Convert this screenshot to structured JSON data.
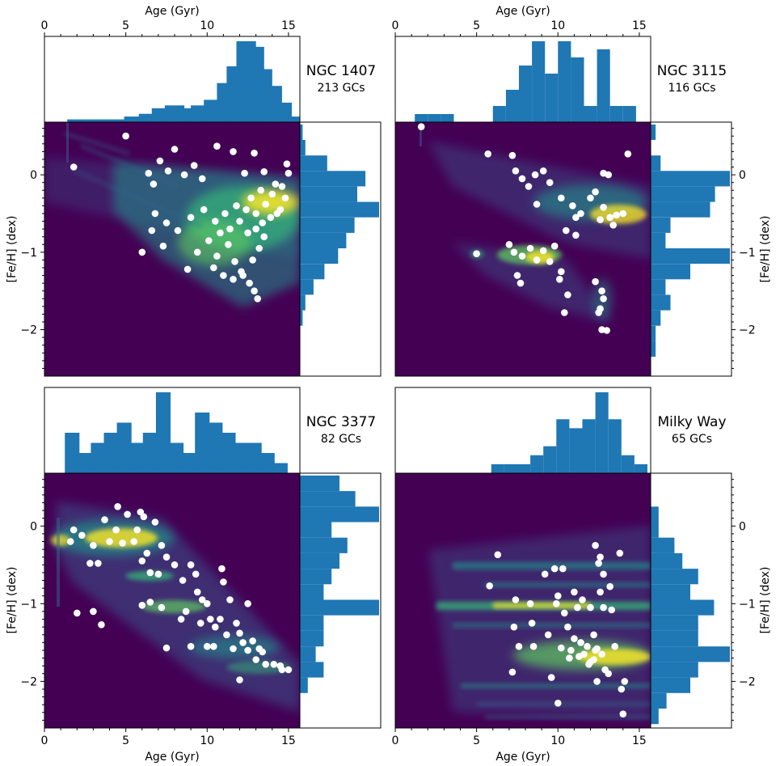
{
  "figure": {
    "x_axis_label": "Age (Gyr)",
    "y_axis_label": "[Fe/H] (dex)"
  },
  "chart_data": [
    {
      "type": "scatter",
      "name": "NGC 1407",
      "gc_count_label": "213 GCs",
      "xlabel": "Age (Gyr)",
      "ylabel": "[Fe/H] (dex)",
      "xlim": [
        0,
        15.7
      ],
      "ylim": [
        -2.6,
        0.68
      ],
      "xticks": [
        0,
        5,
        10,
        15
      ],
      "yticks": [
        -2,
        -1,
        0
      ],
      "density_background": "viridis age-metallicity density",
      "points": [
        [
          1.8,
          0.1
        ],
        [
          5.0,
          0.5
        ],
        [
          6.0,
          -1.0
        ],
        [
          6.4,
          0.02
        ],
        [
          6.7,
          -0.12
        ],
        [
          7.1,
          0.18
        ],
        [
          7.6,
          0.05
        ],
        [
          8.0,
          0.33
        ],
        [
          8.6,
          0.0
        ],
        [
          9.2,
          0.12
        ],
        [
          9.7,
          -0.05
        ],
        [
          10.6,
          0.37
        ],
        [
          11.6,
          0.3
        ],
        [
          12.3,
          0.02
        ],
        [
          12.9,
          0.28
        ],
        [
          13.5,
          0.04
        ],
        [
          14.2,
          -0.12
        ],
        [
          14.9,
          0.14
        ],
        [
          15.0,
          0.02
        ],
        [
          6.8,
          -0.5
        ],
        [
          7.5,
          -0.62
        ],
        [
          8.2,
          -0.72
        ],
        [
          9.0,
          -0.55
        ],
        [
          9.8,
          -0.45
        ],
        [
          10.5,
          -0.6
        ],
        [
          11.1,
          -0.5
        ],
        [
          11.8,
          -0.4
        ],
        [
          12.4,
          -0.45
        ],
        [
          13.0,
          -0.5
        ],
        [
          13.6,
          -0.38
        ],
        [
          14.3,
          -0.5
        ],
        [
          14.8,
          -0.3
        ],
        [
          10.1,
          -0.85
        ],
        [
          10.6,
          -1.05
        ],
        [
          11.3,
          -0.9
        ],
        [
          11.7,
          -1.12
        ],
        [
          12.1,
          -1.25
        ],
        [
          12.6,
          -1.4
        ],
        [
          12.9,
          -1.5
        ],
        [
          13.1,
          -1.6
        ],
        [
          10.4,
          -1.2
        ],
        [
          11.0,
          -1.3
        ],
        [
          11.6,
          -1.35
        ],
        [
          12.2,
          -1.3
        ],
        [
          12.8,
          -1.1
        ],
        [
          13.2,
          -0.95
        ],
        [
          13.5,
          -0.8
        ],
        [
          9.4,
          -1.0
        ],
        [
          8.8,
          -1.22
        ],
        [
          7.3,
          -0.92
        ],
        [
          6.6,
          -0.72
        ],
        [
          12.5,
          -0.75
        ],
        [
          13.0,
          -0.7
        ],
        [
          13.4,
          -0.62
        ],
        [
          13.9,
          -0.55
        ],
        [
          14.5,
          -0.45
        ],
        [
          11.4,
          -0.7
        ],
        [
          10.8,
          -0.75
        ],
        [
          12.0,
          -0.6
        ],
        [
          12.7,
          -0.3
        ],
        [
          13.3,
          -0.2
        ],
        [
          14.0,
          -0.25
        ],
        [
          14.6,
          -0.15
        ]
      ],
      "histogram_age": {
        "bin_centers": [
          0.8,
          2.0,
          3.2,
          4.4,
          5.5,
          6.4,
          7.2,
          8.0,
          8.8,
          9.6,
          10.4,
          11.2,
          11.8,
          12.4,
          12.9,
          13.4,
          14.0,
          14.6,
          15.2
        ],
        "counts": [
          0,
          1,
          1,
          1,
          2,
          3,
          5,
          6,
          5,
          6,
          8,
          14,
          20,
          29,
          27,
          19,
          13,
          7,
          2
        ]
      },
      "histogram_feh": {
        "bin_centers": [
          -2.45,
          -2.25,
          -2.05,
          -1.85,
          -1.65,
          -1.45,
          -1.25,
          -1.05,
          -0.85,
          -0.65,
          -0.45,
          -0.25,
          -0.05,
          0.15,
          0.35,
          0.55
        ],
        "counts": [
          0,
          0,
          0,
          1,
          2,
          5,
          9,
          14,
          17,
          20,
          29,
          21,
          24,
          10,
          2,
          1
        ]
      }
    },
    {
      "type": "scatter",
      "name": "NGC 3115",
      "gc_count_label": "116 GCs",
      "xlabel": "Age (Gyr)",
      "ylabel": "[Fe/H] (dex)",
      "xlim": [
        0,
        15.7
      ],
      "ylim": [
        -2.6,
        0.68
      ],
      "xticks": [
        0,
        5,
        10,
        15
      ],
      "yticks": [
        -2,
        -1,
        0
      ],
      "density_background": "viridis age-metallicity density",
      "points": [
        [
          1.6,
          0.62
        ],
        [
          5.7,
          0.27
        ],
        [
          7.2,
          0.25
        ],
        [
          7.4,
          0.05
        ],
        [
          7.8,
          -0.05
        ],
        [
          8.2,
          -0.15
        ],
        [
          8.6,
          0.0
        ],
        [
          9.1,
          0.05
        ],
        [
          9.5,
          -0.1
        ],
        [
          8.7,
          -0.38
        ],
        [
          10.2,
          -0.3
        ],
        [
          10.9,
          -0.4
        ],
        [
          11.4,
          -0.5
        ],
        [
          12.0,
          -0.3
        ],
        [
          12.3,
          -0.22
        ],
        [
          12.8,
          -0.42
        ],
        [
          13.2,
          -0.55
        ],
        [
          13.6,
          -0.52
        ],
        [
          14.0,
          -0.5
        ],
        [
          14.3,
          0.27
        ],
        [
          12.8,
          0.02
        ],
        [
          13.1,
          0.0
        ],
        [
          12.6,
          -0.58
        ],
        [
          13.4,
          -0.65
        ],
        [
          11.1,
          -0.55
        ],
        [
          10.5,
          -0.72
        ],
        [
          5.0,
          -1.02
        ],
        [
          7.0,
          -0.9
        ],
        [
          7.3,
          -1.0
        ],
        [
          7.8,
          -1.05
        ],
        [
          8.3,
          -0.95
        ],
        [
          8.7,
          -1.1
        ],
        [
          9.1,
          -0.98
        ],
        [
          9.5,
          -1.12
        ],
        [
          9.8,
          -0.92
        ],
        [
          10.2,
          -1.25
        ],
        [
          10.1,
          -1.35
        ],
        [
          7.5,
          -1.3
        ],
        [
          7.7,
          -1.4
        ],
        [
          10.6,
          -1.55
        ],
        [
          10.4,
          -1.78
        ],
        [
          12.3,
          -1.38
        ],
        [
          12.7,
          -1.5
        ],
        [
          12.8,
          -1.6
        ],
        [
          12.6,
          -1.73
        ],
        [
          12.5,
          -1.78
        ],
        [
          12.7,
          -2.0
        ],
        [
          13.0,
          -2.01
        ],
        [
          11.1,
          -0.78
        ]
      ],
      "histogram_age": {
        "bin_centers": [
          0.8,
          1.6,
          2.4,
          3.2,
          4.0,
          4.8,
          5.6,
          6.4,
          7.2,
          8.0,
          8.8,
          9.6,
          10.4,
          11.2,
          12.0,
          12.8,
          13.6,
          14.4,
          15.2
        ],
        "counts": [
          0,
          1,
          1,
          1,
          0,
          0,
          0,
          2,
          4,
          7,
          10,
          6,
          10,
          8,
          2,
          9,
          2,
          2,
          0
        ]
      },
      "histogram_feh": {
        "bin_centers": [
          -2.45,
          -2.25,
          -2.05,
          -1.85,
          -1.65,
          -1.45,
          -1.25,
          -1.05,
          -0.85,
          -0.65,
          -0.45,
          -0.25,
          -0.05,
          0.15,
          0.35,
          0.55
        ],
        "counts": [
          0,
          1,
          1,
          2,
          4,
          3,
          8,
          16,
          3,
          4,
          12,
          13,
          16,
          2,
          0,
          1
        ]
      }
    },
    {
      "type": "scatter",
      "name": "NGC 3377",
      "gc_count_label": "82 GCs",
      "xlabel": "Age (Gyr)",
      "ylabel": "[Fe/H] (dex)",
      "xlim": [
        0,
        15.7
      ],
      "ylim": [
        -2.6,
        0.68
      ],
      "xticks": [
        0,
        5,
        10,
        15
      ],
      "yticks": [
        -2,
        -1,
        0
      ],
      "density_background": "viridis age-metallicity density",
      "points": [
        [
          1.8,
          -0.05
        ],
        [
          2.3,
          -0.12
        ],
        [
          1.6,
          -0.2
        ],
        [
          2.8,
          -0.48
        ],
        [
          3.0,
          -0.25
        ],
        [
          3.3,
          -0.48
        ],
        [
          3.7,
          0.08
        ],
        [
          4.0,
          -0.2
        ],
        [
          4.4,
          -0.05
        ],
        [
          4.5,
          0.25
        ],
        [
          4.8,
          -0.22
        ],
        [
          5.1,
          0.15
        ],
        [
          5.5,
          -0.2
        ],
        [
          5.7,
          -0.05
        ],
        [
          5.9,
          0.18
        ],
        [
          6.1,
          0.12
        ],
        [
          6.0,
          -0.45
        ],
        [
          6.3,
          -0.35
        ],
        [
          6.5,
          -0.6
        ],
        [
          6.8,
          0.05
        ],
        [
          7.2,
          -0.25
        ],
        [
          7.5,
          -0.4
        ],
        [
          7.0,
          -0.62
        ],
        [
          6.5,
          -0.98
        ],
        [
          7.2,
          -1.05
        ],
        [
          7.5,
          -1.57
        ],
        [
          8.0,
          -0.5
        ],
        [
          8.5,
          -0.7
        ],
        [
          8.7,
          -1.1
        ],
        [
          9.0,
          -0.5
        ],
        [
          9.3,
          -0.62
        ],
        [
          9.0,
          -1.55
        ],
        [
          9.4,
          -0.85
        ],
        [
          9.7,
          -0.95
        ],
        [
          10.0,
          -1.0
        ],
        [
          10.2,
          -1.2
        ],
        [
          10.5,
          -1.3
        ],
        [
          10.0,
          -1.55
        ],
        [
          10.4,
          -1.55
        ],
        [
          10.9,
          -0.55
        ],
        [
          11.0,
          -0.72
        ],
        [
          11.4,
          -0.95
        ],
        [
          11.8,
          -1.25
        ],
        [
          12.0,
          -1.38
        ],
        [
          12.2,
          -1.5
        ],
        [
          12.0,
          -1.98
        ],
        [
          12.5,
          -1.0
        ],
        [
          12.8,
          -1.48
        ],
        [
          13.2,
          -1.58
        ],
        [
          13.0,
          -1.72
        ],
        [
          14.5,
          -1.8
        ],
        [
          15.0,
          -1.85
        ],
        [
          2.0,
          -1.12
        ],
        [
          3.0,
          -1.1
        ],
        [
          3.5,
          -1.27
        ],
        [
          12.5,
          -1.6
        ],
        [
          11.2,
          -1.4
        ],
        [
          8.4,
          -1.2
        ],
        [
          6.0,
          -1.02
        ],
        [
          10.8,
          -1.2
        ],
        [
          9.6,
          -1.25
        ],
        [
          11.6,
          -1.58
        ],
        [
          13.4,
          -1.62
        ],
        [
          13.6,
          -1.78
        ],
        [
          14.1,
          -1.78
        ],
        [
          14.6,
          -1.85
        ]
      ],
      "histogram_age": {
        "bin_centers": [
          0.8,
          1.7,
          2.5,
          3.3,
          4.1,
          4.9,
          5.7,
          6.5,
          7.3,
          8.1,
          8.9,
          9.7,
          10.5,
          11.3,
          12.1,
          12.9,
          13.7,
          14.5,
          15.3
        ],
        "counts": [
          0,
          4,
          2,
          3,
          4,
          5,
          3,
          4,
          8,
          3,
          2,
          6,
          5,
          4,
          3,
          3,
          2,
          1,
          0
        ]
      },
      "histogram_feh": {
        "bin_centers": [
          -2.45,
          -2.25,
          -2.05,
          -1.85,
          -1.65,
          -1.45,
          -1.25,
          -1.05,
          -0.85,
          -0.65,
          -0.45,
          -0.25,
          -0.05,
          0.15,
          0.35,
          0.55
        ],
        "counts": [
          0,
          0,
          1,
          3,
          2,
          3,
          3,
          10,
          3,
          4,
          5,
          6,
          4,
          10,
          7,
          5
        ]
      }
    },
    {
      "type": "scatter",
      "name": "Milky Way",
      "gc_count_label": "65 GCs",
      "xlabel": "Age (Gyr)",
      "ylabel": "[Fe/H] (dex)",
      "xlim": [
        0,
        15.7
      ],
      "ylim": [
        -2.6,
        0.68
      ],
      "xticks": [
        0,
        5,
        10,
        15
      ],
      "yticks": [
        -2,
        -1,
        0
      ],
      "density_background": "viridis age-metallicity density",
      "points": [
        [
          6.3,
          -0.37
        ],
        [
          5.8,
          -0.77
        ],
        [
          7.3,
          -1.3
        ],
        [
          7.6,
          -1.55
        ],
        [
          7.4,
          -0.95
        ],
        [
          7.2,
          -1.88
        ],
        [
          8.3,
          -1.0
        ],
        [
          8.4,
          -1.25
        ],
        [
          8.5,
          -1.55
        ],
        [
          9.2,
          -0.62
        ],
        [
          9.4,
          -1.4
        ],
        [
          9.6,
          -1.95
        ],
        [
          9.8,
          -0.55
        ],
        [
          9.9,
          -1.0
        ],
        [
          10.0,
          -2.28
        ],
        [
          10.3,
          -0.55
        ],
        [
          10.4,
          -1.12
        ],
        [
          10.6,
          -1.3
        ],
        [
          10.2,
          -1.57
        ],
        [
          10.8,
          -1.6
        ],
        [
          11.0,
          -0.85
        ],
        [
          11.2,
          -1.05
        ],
        [
          11.4,
          -1.5
        ],
        [
          11.6,
          -1.65
        ],
        [
          11.8,
          -1.55
        ],
        [
          12.0,
          -1.75
        ],
        [
          12.2,
          -1.72
        ],
        [
          12.4,
          -1.58
        ],
        [
          12.6,
          -0.4
        ],
        [
          12.6,
          -0.85
        ],
        [
          12.8,
          -1.05
        ],
        [
          12.7,
          -1.65
        ],
        [
          12.9,
          -1.85
        ],
        [
          13.1,
          -1.9
        ],
        [
          13.3,
          -1.08
        ],
        [
          12.3,
          -0.25
        ],
        [
          12.5,
          -0.48
        ],
        [
          12.8,
          -0.62
        ],
        [
          13.2,
          -0.78
        ],
        [
          13.8,
          -0.35
        ],
        [
          13.9,
          -2.1
        ],
        [
          14.0,
          -2.42
        ],
        [
          14.1,
          -2.0
        ],
        [
          11.3,
          -1.68
        ],
        [
          10.7,
          -1.7
        ],
        [
          12.0,
          -1.05
        ],
        [
          11.5,
          -0.95
        ],
        [
          12.2,
          -1.4
        ],
        [
          12.4,
          -2.0
        ],
        [
          11.9,
          -1.78
        ],
        [
          13.5,
          -1.55
        ],
        [
          12.3,
          -1.6
        ],
        [
          11.0,
          -1.45
        ],
        [
          10.0,
          -0.9
        ]
      ],
      "histogram_age": {
        "bin_centers": [
          5.5,
          6.3,
          7.1,
          7.9,
          8.7,
          9.5,
          10.3,
          11.1,
          11.9,
          12.7,
          13.5,
          14.3,
          15.1
        ],
        "counts": [
          0,
          1,
          1,
          1,
          2,
          3,
          6,
          5,
          6,
          9,
          6,
          2,
          1
        ]
      },
      "histogram_feh": {
        "bin_centers": [
          -2.45,
          -2.25,
          -2.05,
          -1.85,
          -1.65,
          -1.45,
          -1.25,
          -1.05,
          -0.85,
          -0.65,
          -0.45,
          -0.25,
          -0.05,
          0.15,
          0.35,
          0.55
        ],
        "counts": [
          1,
          2,
          5,
          6,
          10,
          6,
          6,
          8,
          5,
          6,
          4,
          3,
          1,
          1,
          0,
          0
        ]
      }
    }
  ]
}
